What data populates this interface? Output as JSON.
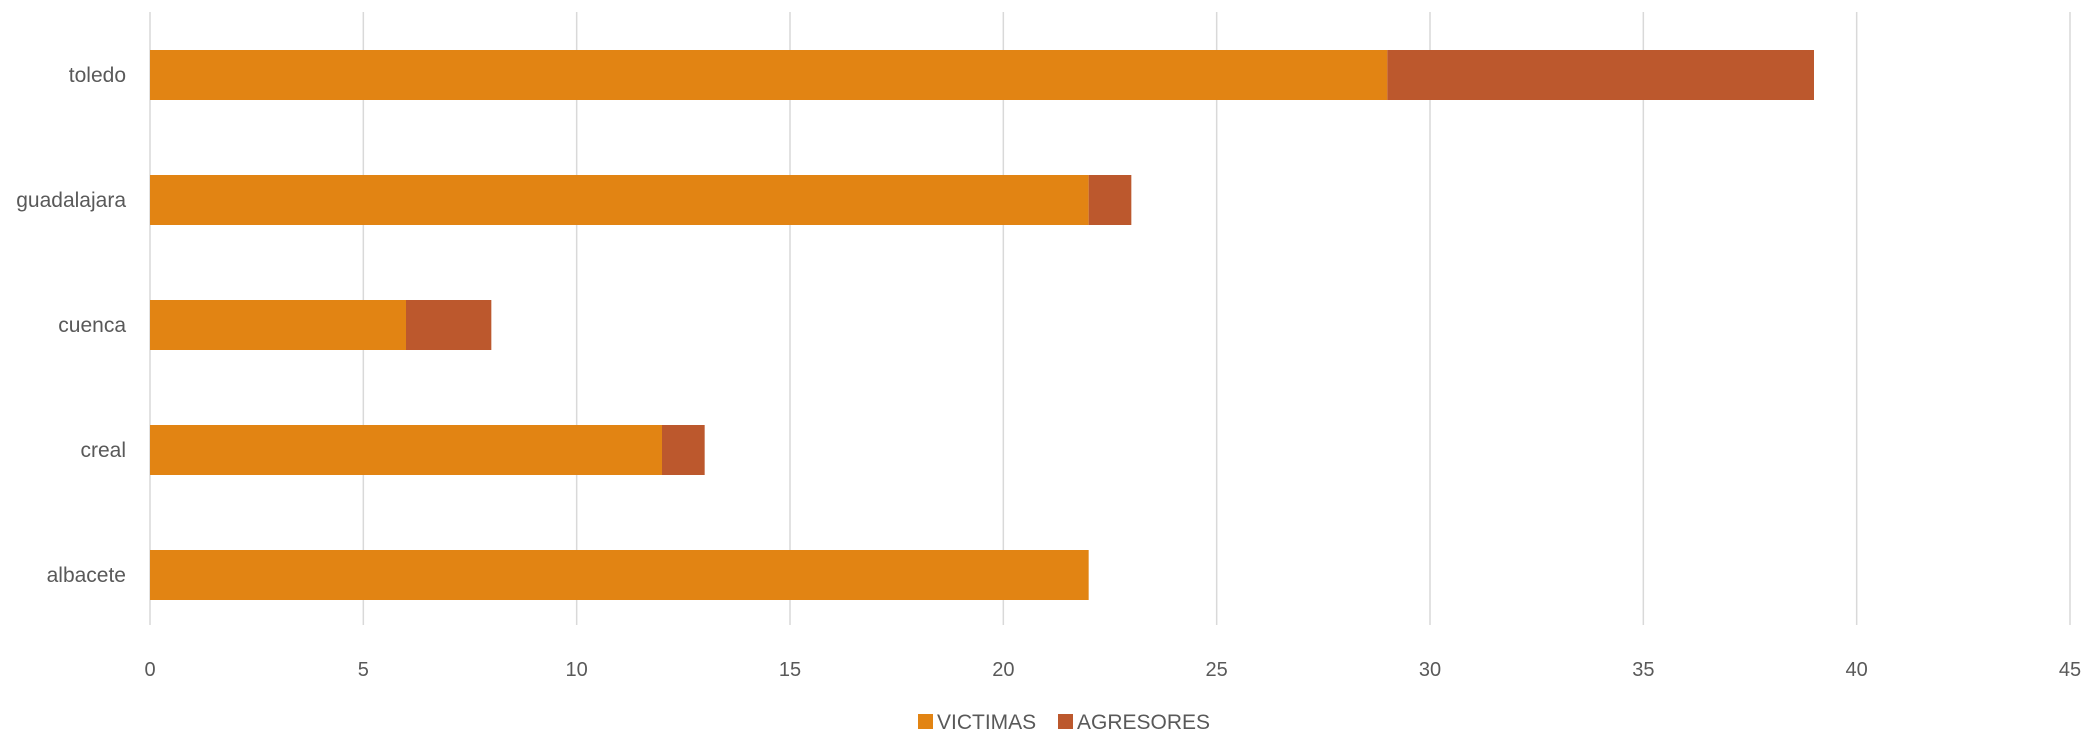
{
  "chart_data": {
    "type": "bar",
    "orientation": "horizontal",
    "stacked": true,
    "categories": [
      "toledo",
      "guadalajara",
      "cuenca",
      "creal",
      "albacete"
    ],
    "series": [
      {
        "name": "VICTIMAS",
        "values": [
          29,
          22,
          6,
          12,
          22
        ],
        "color": "#E28413"
      },
      {
        "name": "AGRESORES",
        "values": [
          10,
          1,
          2,
          1,
          0
        ],
        "color": "#BC582D"
      }
    ],
    "xlim": [
      0,
      45
    ],
    "xticks": [
      "0",
      "5",
      "10",
      "15",
      "20",
      "25",
      "30",
      "35",
      "40",
      "45"
    ],
    "grid": "vertical",
    "legend_position": "bottom",
    "title": "",
    "xlabel": "",
    "ylabel": ""
  }
}
